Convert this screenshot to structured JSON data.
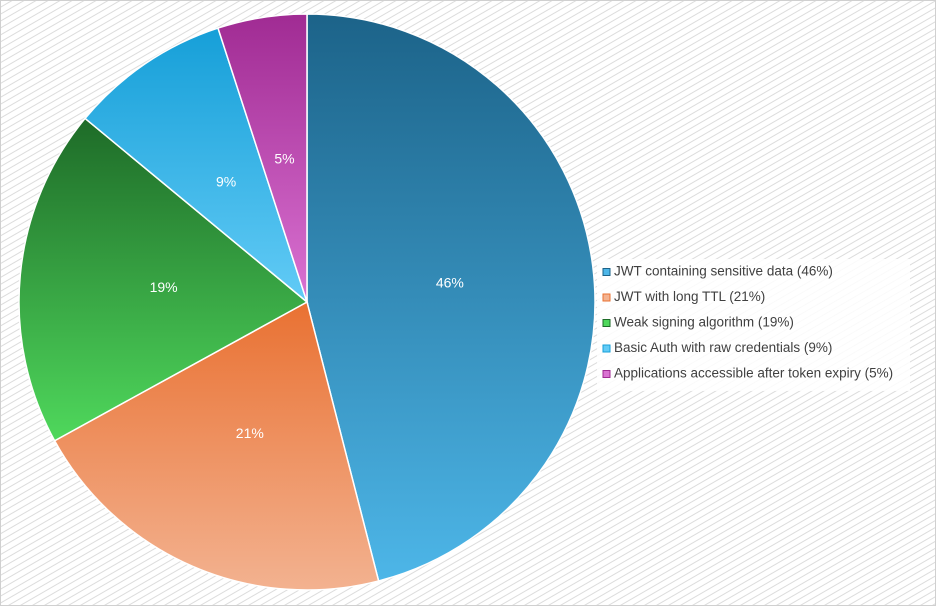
{
  "chart_data": {
    "type": "pie",
    "title": "",
    "start_angle_deg": 0,
    "direction": "clockwise",
    "legend_position": "right",
    "slices": [
      {
        "label": "JWT containing sensitive data",
        "value": 46,
        "data_label": "46%",
        "legend": "JWT containing sensitive data (46%)",
        "color_top": "#1c6389",
        "color_bottom": "#4db6e8"
      },
      {
        "label": "JWT with long TTL",
        "value": 21,
        "data_label": "21%",
        "legend": "JWT with long TTL (21%)",
        "color_top": "#e97132",
        "color_bottom": "#f3b290"
      },
      {
        "label": "Weak signing algorithm",
        "value": 19,
        "data_label": "19%",
        "legend": "Weak signing algorithm (19%)",
        "color_top": "#1e6b28",
        "color_bottom": "#4fd85c"
      },
      {
        "label": "Basic Auth with raw credentials",
        "value": 9,
        "data_label": "9%",
        "legend": "Basic Auth with raw credentials (9%)",
        "color_top": "#169fd8",
        "color_bottom": "#62cbf6"
      },
      {
        "label": "Applications accessible after token expiry",
        "value": 5,
        "data_label": "5%",
        "legend": "Applications accessible after token expiry (5%)",
        "color_top": "#a02b93",
        "color_bottom": "#da72d2"
      }
    ]
  }
}
